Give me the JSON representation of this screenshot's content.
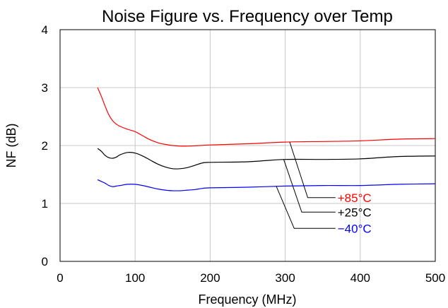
{
  "chart_data": {
    "type": "line",
    "title": "Noise Figure vs. Frequency over Temp",
    "xlabel": "Frequency (MHz)",
    "ylabel": "NF (dB)",
    "xlim": [
      0,
      500
    ],
    "ylim": [
      0,
      4
    ],
    "xticks": [
      0,
      100,
      200,
      300,
      400,
      500
    ],
    "yticks": [
      0,
      1,
      2,
      3,
      4
    ],
    "grid": true,
    "series": [
      {
        "name": "+85°C",
        "color": "#ff0000",
        "x": [
          50,
          55,
          60,
          65,
          70,
          75,
          80,
          90,
          100,
          110,
          120,
          130,
          140,
          150,
          160,
          170,
          180,
          200,
          250,
          300,
          350,
          400,
          450,
          500
        ],
        "y": [
          3.0,
          2.85,
          2.68,
          2.53,
          2.43,
          2.37,
          2.33,
          2.28,
          2.24,
          2.17,
          2.1,
          2.05,
          2.02,
          2.0,
          1.99,
          1.99,
          1.995,
          2.01,
          2.03,
          2.06,
          2.07,
          2.08,
          2.11,
          2.12
        ]
      },
      {
        "name": "+25°C",
        "color": "#000000",
        "x": [
          50,
          55,
          60,
          65,
          70,
          75,
          80,
          90,
          100,
          110,
          120,
          130,
          140,
          150,
          160,
          170,
          180,
          190,
          200,
          250,
          300,
          350,
          400,
          450,
          500
        ],
        "y": [
          1.95,
          1.9,
          1.83,
          1.79,
          1.78,
          1.8,
          1.84,
          1.88,
          1.87,
          1.82,
          1.75,
          1.68,
          1.63,
          1.6,
          1.6,
          1.62,
          1.66,
          1.7,
          1.71,
          1.72,
          1.76,
          1.76,
          1.77,
          1.81,
          1.82
        ]
      },
      {
        "name": "−40°C",
        "color": "#0000ff",
        "x": [
          50,
          55,
          60,
          65,
          70,
          75,
          80,
          90,
          100,
          110,
          120,
          130,
          140,
          150,
          160,
          170,
          180,
          190,
          200,
          250,
          300,
          350,
          400,
          450,
          500
        ],
        "y": [
          1.41,
          1.38,
          1.35,
          1.31,
          1.29,
          1.3,
          1.31,
          1.33,
          1.33,
          1.31,
          1.28,
          1.25,
          1.23,
          1.22,
          1.22,
          1.23,
          1.24,
          1.26,
          1.27,
          1.28,
          1.3,
          1.31,
          1.31,
          1.33,
          1.34
        ]
      }
    ],
    "annotations": [
      {
        "series": "+85°C",
        "text": "+85°C",
        "color": "#ff0000",
        "pointer_from": [
          306,
          2.06
        ],
        "pointer_elbow": [
          330,
          1.1
        ],
        "pointer_to": [
          367,
          1.1
        ]
      },
      {
        "series": "+25°C",
        "text": "+25°C",
        "color": "#000000",
        "pointer_from": [
          298,
          1.76
        ],
        "pointer_elbow": [
          322,
          0.85
        ],
        "pointer_to": [
          367,
          0.85
        ]
      },
      {
        "series": "−40°C",
        "text": "−40°C",
        "color": "#0000ff",
        "pointer_from": [
          288,
          1.3
        ],
        "pointer_elbow": [
          312,
          0.57
        ],
        "pointer_to": [
          367,
          0.57
        ]
      }
    ]
  }
}
